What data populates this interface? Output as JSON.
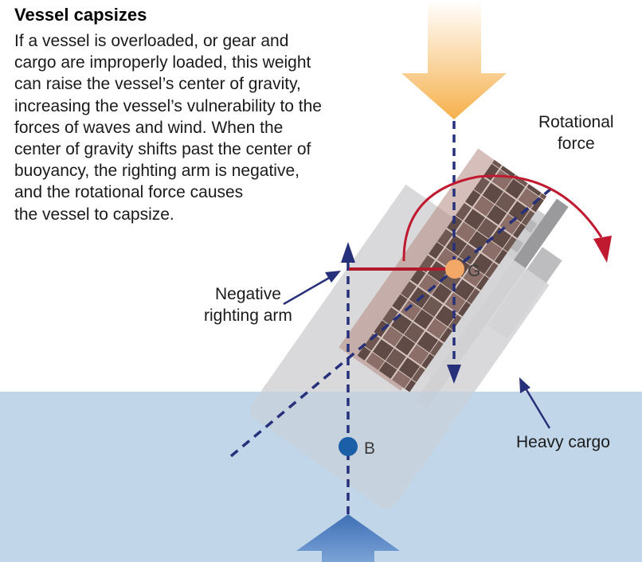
{
  "title": "Vessel capsizes",
  "description_lines": [
    "If a vessel is overloaded, or gear and",
    "cargo are improperly loaded, this weight",
    "can raise the vessel’s center of gravity,",
    "increasing the vessel’s vulnerability to the",
    "forces of waves and wind. When the",
    "center of gravity shifts past the center of",
    "buoyancy, the righting arm is negative,",
    "and the rotational force causes",
    "the vessel to capsize."
  ],
  "labels": {
    "rotational": [
      "Rotational",
      "force"
    ],
    "negative": [
      "Negative",
      "righting arm"
    ],
    "heavy_cargo": "Heavy cargo",
    "g": "G",
    "b": "B"
  },
  "colors": {
    "water": "#cde0ef",
    "hull": "#d4d4d6",
    "dashed_line": "#27307a",
    "righting_arm": "#b3192c",
    "rotation_arrow": "#c01a30",
    "gravity_point": "#f0a060",
    "buoyancy_point": "#1a5fa8",
    "cargo_dark": "#6e5650",
    "cargo_light": "#93776f",
    "gravity_arrow": "#f6b450",
    "buoyancy_arrow": "#4a7cc0"
  }
}
